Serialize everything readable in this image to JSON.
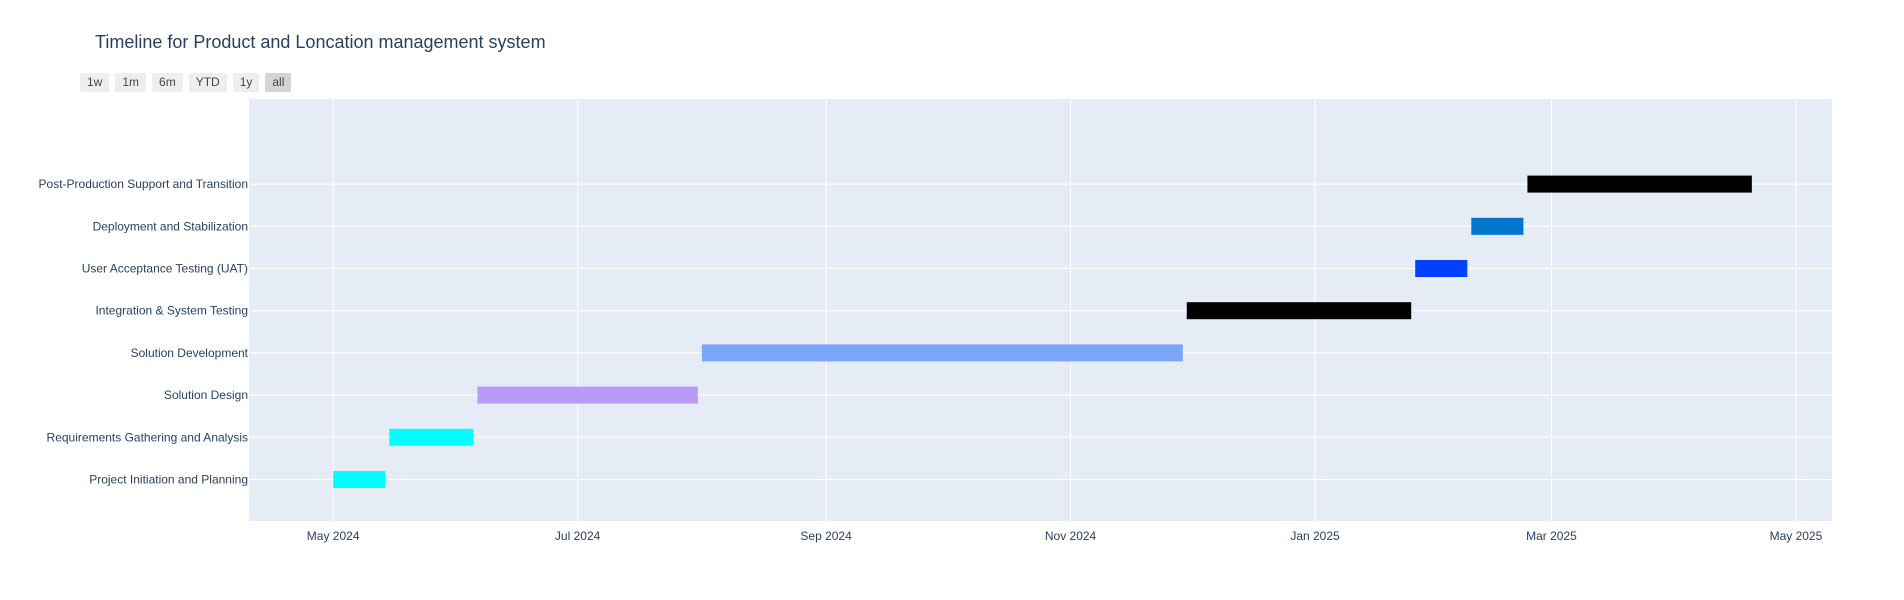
{
  "title": "Timeline for Product and Loncation management system",
  "range_selector": {
    "buttons": [
      "1w",
      "1m",
      "6m",
      "YTD",
      "1y",
      "all"
    ],
    "active": "all"
  },
  "chart_data": {
    "type": "bar",
    "orientation": "horizontal-timeline",
    "title": "Timeline for Product and Loncation management system",
    "xlabel": "",
    "ylabel": "",
    "xlim": [
      "2024-04-10",
      "2025-05-10"
    ],
    "x_ticks": [
      "2024-05-01",
      "2024-07-01",
      "2024-09-01",
      "2024-11-01",
      "2025-01-01",
      "2025-03-01",
      "2025-05-01"
    ],
    "x_tick_labels": [
      "May 2024",
      "Jul 2024",
      "Sep 2024",
      "Nov 2024",
      "Jan 2025",
      "Mar 2025",
      "May 2025"
    ],
    "grid": true,
    "legend": "none",
    "tasks": [
      {
        "name": "Project Initiation and Planning",
        "start": "2024-05-01",
        "end": "2024-05-14",
        "color": "#00FFFF"
      },
      {
        "name": "Requirements Gathering and Analysis",
        "start": "2024-05-15",
        "end": "2024-06-05",
        "color": "#00FFFF"
      },
      {
        "name": "Solution Design",
        "start": "2024-06-06",
        "end": "2024-07-31",
        "color": "#BB9AF7"
      },
      {
        "name": "Solution Development",
        "start": "2024-08-01",
        "end": "2024-11-29",
        "color": "#7AA6F8"
      },
      {
        "name": "Integration & System Testing",
        "start": "2024-11-30",
        "end": "2025-01-25",
        "color": "#000000"
      },
      {
        "name": "User Acceptance Testing (UAT)",
        "start": "2025-01-26",
        "end": "2025-02-08",
        "color": "#0041FF"
      },
      {
        "name": "Deployment and Stabilization",
        "start": "2025-02-09",
        "end": "2025-02-22",
        "color": "#0076CC"
      },
      {
        "name": "Post-Production Support and Transition",
        "start": "2025-02-23",
        "end": "2025-04-20",
        "color": "#000000"
      }
    ]
  }
}
